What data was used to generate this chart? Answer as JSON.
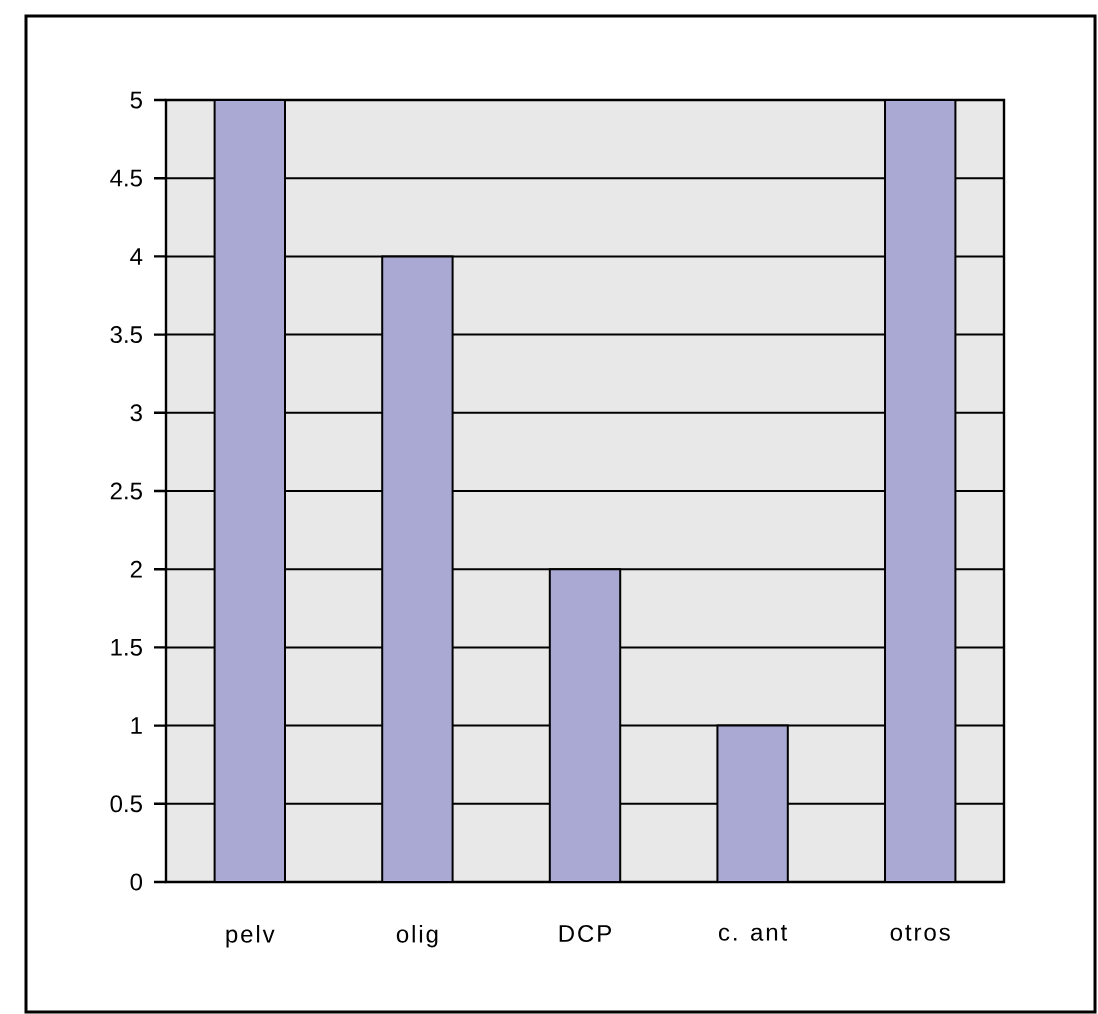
{
  "chart_data": {
    "type": "bar",
    "categories": [
      "pelv",
      "olig",
      "DCP",
      "c. ant",
      "otros"
    ],
    "values": [
      5,
      4,
      2,
      1,
      5
    ],
    "color": "#a9a9d3",
    "ylim": [
      0,
      5
    ],
    "yticks": [
      0,
      0.5,
      1,
      1.5,
      2,
      2.5,
      3,
      3.5,
      4,
      4.5,
      5
    ],
    "grid": "y"
  }
}
